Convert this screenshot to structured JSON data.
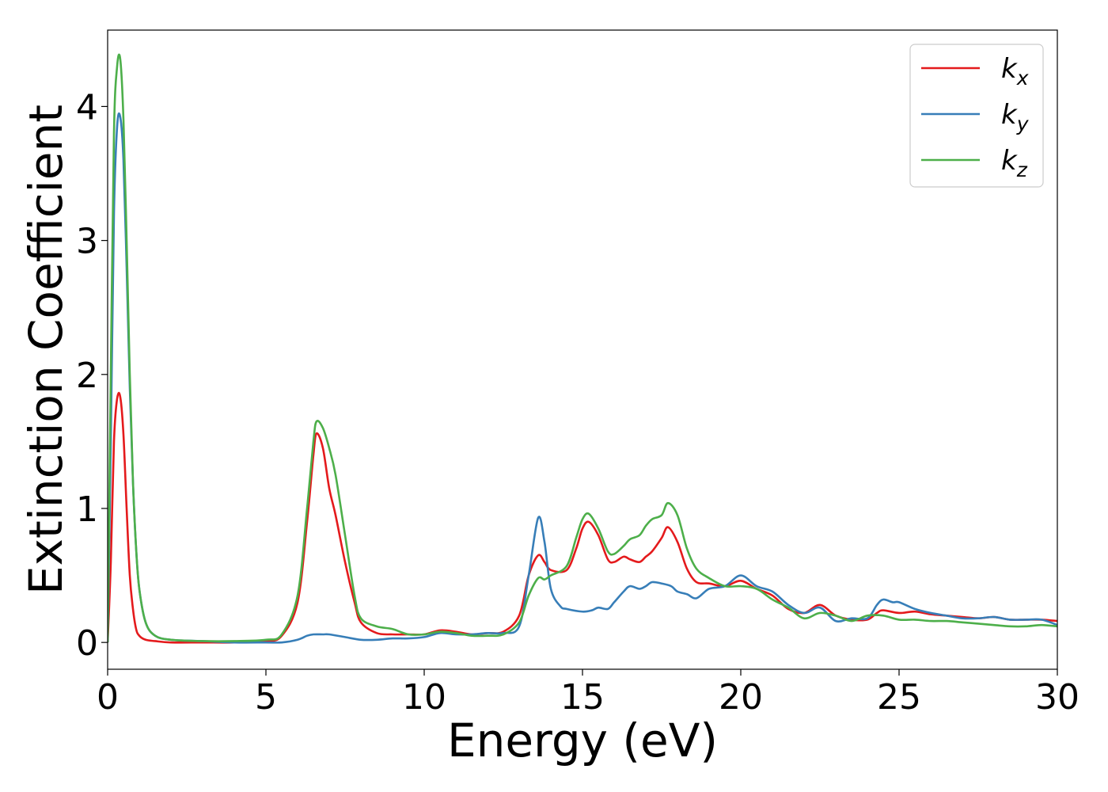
{
  "chart_data": {
    "type": "line",
    "xlabel": "Energy (eV)",
    "ylabel": "Extinction Coefficient",
    "xlim": [
      0,
      30
    ],
    "ylim": [
      -0.2,
      4.57
    ],
    "xticks": [
      0,
      5,
      10,
      15,
      20,
      25,
      30
    ],
    "yticks": [
      0,
      1,
      2,
      3,
      4
    ],
    "grid": false,
    "legend_position": "top-right",
    "series": [
      {
        "name": "k_x",
        "label_base": "k",
        "label_sub": "x",
        "color": "#e41a1c",
        "x": [
          0,
          0.1,
          0.2,
          0.3,
          0.4,
          0.5,
          0.6,
          0.7,
          0.8,
          0.9,
          1.0,
          1.2,
          1.5,
          2,
          3,
          4,
          5,
          5.5,
          6,
          6.3,
          6.5,
          6.6,
          6.8,
          7.0,
          7.2,
          7.5,
          7.8,
          8.0,
          8.5,
          9,
          9.5,
          10,
          10.5,
          11,
          11.5,
          12,
          12.5,
          13,
          13.3,
          13.6,
          13.8,
          14,
          14.5,
          14.8,
          15.0,
          15.2,
          15.5,
          15.8,
          16,
          16.3,
          16.5,
          16.8,
          17,
          17.2,
          17.5,
          17.7,
          18,
          18.3,
          18.6,
          19,
          19.5,
          20,
          20.5,
          21,
          21.5,
          22,
          22.5,
          23,
          23.5,
          24,
          24.3,
          24.5,
          25,
          25.5,
          26,
          26.5,
          27,
          27.5,
          28,
          28.5,
          29,
          29.5,
          30
        ],
        "y": [
          0.0,
          0.6,
          1.5,
          1.82,
          1.83,
          1.55,
          1.0,
          0.5,
          0.25,
          0.1,
          0.05,
          0.02,
          0.01,
          0.0,
          0.0,
          0.0,
          0.01,
          0.05,
          0.3,
          0.9,
          1.4,
          1.56,
          1.45,
          1.15,
          0.95,
          0.6,
          0.3,
          0.15,
          0.07,
          0.06,
          0.06,
          0.06,
          0.09,
          0.08,
          0.06,
          0.07,
          0.08,
          0.2,
          0.5,
          0.65,
          0.6,
          0.54,
          0.54,
          0.7,
          0.85,
          0.9,
          0.8,
          0.62,
          0.6,
          0.64,
          0.62,
          0.6,
          0.64,
          0.68,
          0.78,
          0.86,
          0.75,
          0.55,
          0.45,
          0.44,
          0.42,
          0.46,
          0.4,
          0.35,
          0.25,
          0.22,
          0.28,
          0.2,
          0.17,
          0.17,
          0.22,
          0.24,
          0.22,
          0.23,
          0.21,
          0.2,
          0.19,
          0.18,
          0.19,
          0.17,
          0.17,
          0.17,
          0.16
        ]
      },
      {
        "name": "k_y",
        "label_base": "k",
        "label_sub": "y",
        "color": "#377eb8",
        "x": [
          0,
          0.1,
          0.2,
          0.3,
          0.4,
          0.5,
          0.6,
          0.7,
          0.8,
          0.9,
          1.0,
          1.2,
          1.5,
          2,
          3,
          4,
          5,
          5.5,
          6,
          6.3,
          6.5,
          6.8,
          7.0,
          7.5,
          8,
          8.5,
          9,
          9.5,
          10,
          10.5,
          11,
          11.5,
          12,
          12.5,
          13,
          13.3,
          13.6,
          13.8,
          14,
          14.3,
          14.5,
          15,
          15.3,
          15.5,
          15.8,
          16,
          16.3,
          16.5,
          16.8,
          17,
          17.2,
          17.5,
          17.8,
          18,
          18.3,
          18.6,
          19,
          19.5,
          20,
          20.5,
          21,
          21.5,
          22,
          22.5,
          23,
          23.5,
          24,
          24.3,
          24.5,
          24.8,
          25,
          25.5,
          26,
          26.5,
          27,
          27.5,
          28,
          28.5,
          29,
          29.5,
          30
        ],
        "y": [
          0.0,
          1.5,
          3.2,
          3.85,
          3.92,
          3.6,
          2.8,
          1.9,
          1.2,
          0.7,
          0.4,
          0.15,
          0.05,
          0.02,
          0.01,
          0.0,
          0.0,
          0.0,
          0.02,
          0.05,
          0.06,
          0.06,
          0.06,
          0.04,
          0.02,
          0.02,
          0.03,
          0.03,
          0.04,
          0.07,
          0.06,
          0.06,
          0.07,
          0.07,
          0.12,
          0.5,
          0.93,
          0.75,
          0.4,
          0.27,
          0.25,
          0.23,
          0.24,
          0.26,
          0.25,
          0.3,
          0.38,
          0.42,
          0.4,
          0.42,
          0.45,
          0.44,
          0.42,
          0.38,
          0.36,
          0.33,
          0.4,
          0.42,
          0.5,
          0.42,
          0.38,
          0.28,
          0.22,
          0.26,
          0.16,
          0.18,
          0.18,
          0.28,
          0.32,
          0.3,
          0.3,
          0.25,
          0.22,
          0.2,
          0.18,
          0.18,
          0.19,
          0.17,
          0.17,
          0.17,
          0.13
        ]
      },
      {
        "name": "k_z",
        "label_base": "k",
        "label_sub": "z",
        "color": "#4daf4a",
        "x": [
          0,
          0.1,
          0.2,
          0.3,
          0.4,
          0.5,
          0.6,
          0.7,
          0.8,
          0.9,
          1.0,
          1.2,
          1.5,
          2,
          3,
          4,
          5,
          5.5,
          6,
          6.3,
          6.5,
          6.6,
          6.8,
          7.0,
          7.2,
          7.5,
          7.8,
          8.0,
          8.5,
          9,
          9.5,
          10,
          10.5,
          11,
          11.5,
          12,
          12.5,
          13,
          13.3,
          13.6,
          13.8,
          14,
          14.5,
          14.8,
          15.0,
          15.2,
          15.5,
          15.8,
          16,
          16.3,
          16.5,
          16.8,
          17,
          17.2,
          17.5,
          17.7,
          18,
          18.3,
          18.6,
          19,
          19.5,
          20,
          20.5,
          21,
          21.5,
          22,
          22.5,
          23,
          23.5,
          24,
          24.5,
          25,
          25.5,
          26,
          26.5,
          27,
          27.5,
          28,
          28.5,
          29,
          29.5,
          30
        ],
        "y": [
          0.0,
          2.0,
          3.8,
          4.3,
          4.35,
          3.9,
          3.0,
          2.0,
          1.2,
          0.7,
          0.4,
          0.15,
          0.05,
          0.02,
          0.01,
          0.01,
          0.02,
          0.06,
          0.35,
          1.0,
          1.5,
          1.65,
          1.6,
          1.45,
          1.25,
          0.8,
          0.35,
          0.18,
          0.12,
          0.1,
          0.06,
          0.06,
          0.08,
          0.07,
          0.05,
          0.05,
          0.06,
          0.15,
          0.35,
          0.48,
          0.47,
          0.5,
          0.57,
          0.78,
          0.92,
          0.96,
          0.85,
          0.68,
          0.66,
          0.72,
          0.77,
          0.8,
          0.87,
          0.92,
          0.95,
          1.04,
          0.95,
          0.7,
          0.55,
          0.48,
          0.42,
          0.42,
          0.4,
          0.32,
          0.26,
          0.18,
          0.22,
          0.2,
          0.16,
          0.2,
          0.2,
          0.17,
          0.17,
          0.16,
          0.16,
          0.15,
          0.14,
          0.13,
          0.12,
          0.12,
          0.13,
          0.12
        ]
      }
    ]
  }
}
